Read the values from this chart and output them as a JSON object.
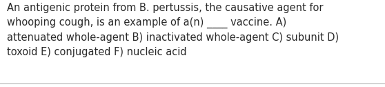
{
  "text_line1": "An antigenic protein from B. pertussis, the causative agent for",
  "text_line2": "whooping cough, is an example of a(n) ____ vaccine. A)",
  "text_line3": "attenuated whole-agent B) inactivated whole-agent C) subunit D)",
  "text_line4": "toxoid E) conjugated F) nucleic acid",
  "background_color": "#ffffff",
  "text_color": "#2a2a2a",
  "font_size": 10.5,
  "border_color": "#cccccc",
  "fig_width": 5.58,
  "fig_height": 1.26,
  "dpi": 100
}
